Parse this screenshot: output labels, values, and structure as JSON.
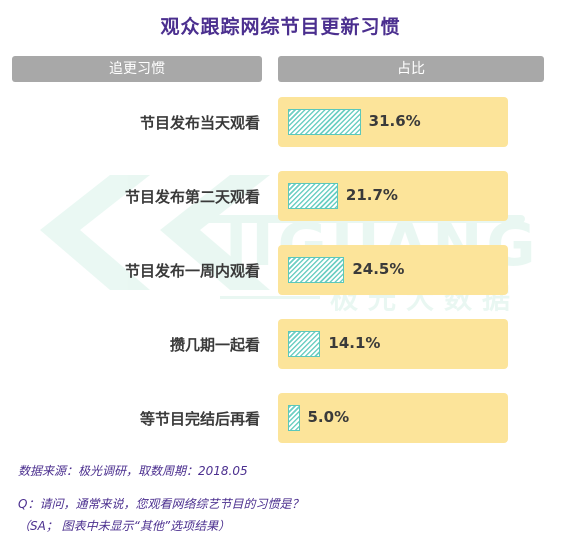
{
  "title": "观众跟踪网综节目更新习惯",
  "headers": {
    "left": "追更习惯",
    "right": "占比"
  },
  "watermark": {
    "brand": "IIGUANG",
    "sub": "极光大数据"
  },
  "chart_data": {
    "type": "bar",
    "orientation": "horizontal",
    "title": "观众跟踪网综节目更新习惯",
    "categories": [
      "节目发布当天观看",
      "节目发布第二天观看",
      "节目发布一周内观看",
      "攒几期一起看",
      "等节目完结后再看"
    ],
    "values": [
      31.6,
      21.7,
      24.5,
      14.1,
      5.0
    ],
    "value_labels": [
      "31.6%",
      "21.7%",
      "24.5%",
      "14.1%",
      "5.0%"
    ],
    "xlim": [
      0,
      100
    ],
    "colors": {
      "bar": "#6dcfc3",
      "panel": "#fce49a",
      "title": "#4b2f8f"
    }
  },
  "footer": {
    "source": "数据来源：极光调研，取数周期：2018.05",
    "question": "Q：请问，通常来说，您观看网络综艺节目的习惯是？",
    "note": "（SA； 图表中未显示“其他”选项结果）"
  }
}
